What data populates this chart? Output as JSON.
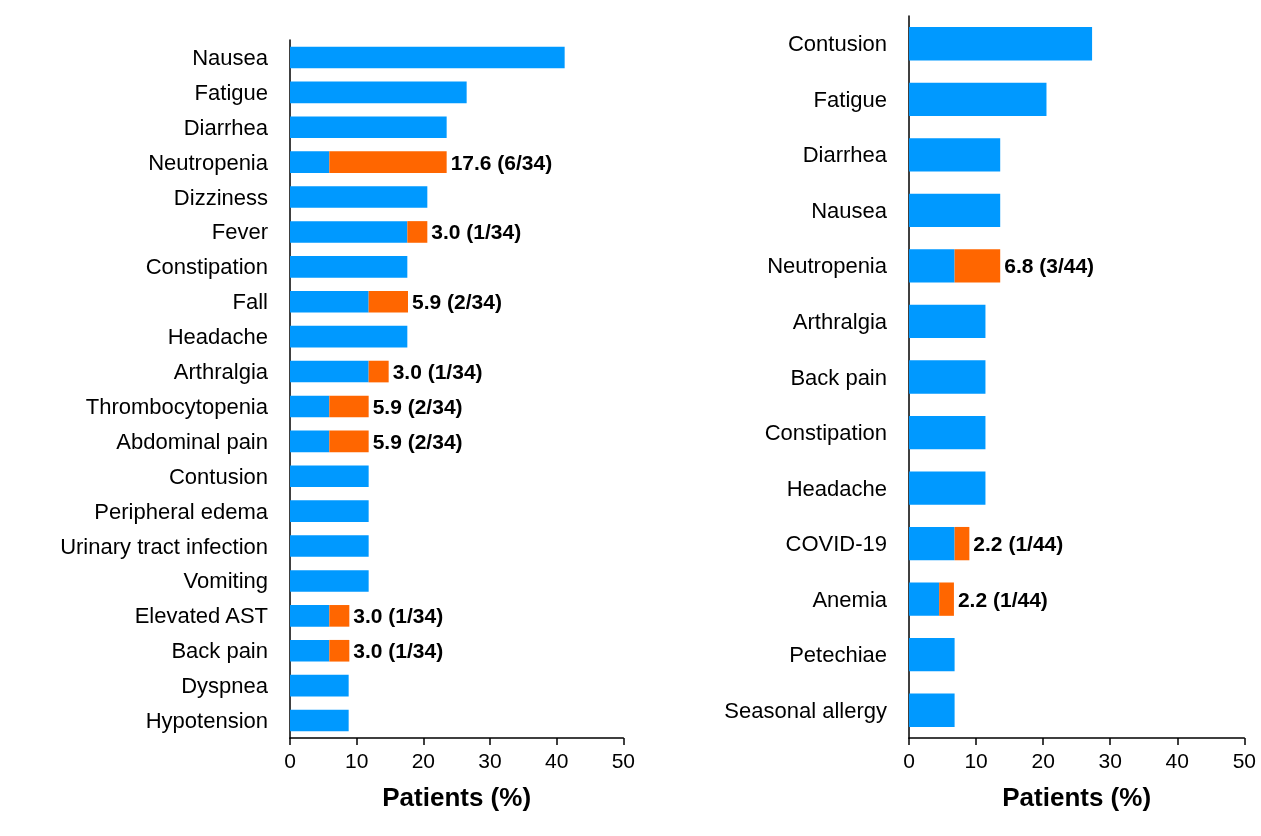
{
  "chart_data": [
    {
      "type": "bar",
      "orientation": "horizontal",
      "stacked": true,
      "xlabel": "Patients (%)",
      "xlim": [
        0,
        50
      ],
      "xticks": [
        0,
        10,
        20,
        30,
        40,
        50
      ],
      "categories": [
        "Nausea",
        "Fatigue",
        "Diarrhea",
        "Neutropenia",
        "Dizziness",
        "Fever",
        "Constipation",
        "Fall",
        "Headache",
        "Arthralgia",
        "Thrombocytopenia",
        "Abdominal pain",
        "Contusion",
        "Peripheral edema",
        "Urinary tract infection",
        "Vomiting",
        "Elevated AST",
        "Back pain",
        "Dyspnea",
        "Hypotension"
      ],
      "series": [
        {
          "color": "#0099ff",
          "values": [
            41.2,
            26.5,
            23.5,
            5.9,
            20.6,
            17.6,
            17.6,
            11.8,
            17.6,
            11.8,
            5.9,
            5.9,
            11.8,
            11.8,
            11.8,
            11.8,
            5.9,
            5.9,
            8.8,
            8.8
          ]
        },
        {
          "color": "#ff6600",
          "values": [
            null,
            null,
            null,
            17.6,
            null,
            3.0,
            null,
            5.9,
            null,
            3.0,
            5.9,
            5.9,
            null,
            null,
            null,
            null,
            3.0,
            3.0,
            null,
            null
          ],
          "value_labels": [
            null,
            null,
            null,
            "17.6 (6/34)",
            null,
            "3.0 (1/34)",
            null,
            "5.9 (2/34)",
            null,
            "3.0 (1/34)",
            "5.9 (2/34)",
            "5.9 (2/34)",
            null,
            null,
            null,
            null,
            "3.0 (1/34)",
            "3.0 (1/34)",
            null,
            null
          ]
        }
      ]
    },
    {
      "type": "bar",
      "orientation": "horizontal",
      "stacked": true,
      "xlabel": "Patients (%)",
      "xlim": [
        0,
        50
      ],
      "xticks": [
        0,
        10,
        20,
        30,
        40,
        50
      ],
      "categories": [
        "Contusion",
        "Fatigue",
        "Diarrhea",
        "Nausea",
        "Neutropenia",
        "Arthralgia",
        "Back pain",
        "Constipation",
        "Headache",
        "COVID-19",
        "Anemia",
        "Petechiae",
        "Seasonal allergy"
      ],
      "series": [
        {
          "color": "#0099ff",
          "values": [
            27.3,
            20.5,
            13.6,
            13.6,
            6.8,
            11.4,
            11.4,
            11.4,
            11.4,
            6.8,
            4.5,
            6.8,
            6.8
          ]
        },
        {
          "color": "#ff6600",
          "values": [
            null,
            null,
            null,
            null,
            6.8,
            null,
            null,
            null,
            null,
            2.2,
            2.2,
            null,
            null
          ],
          "value_labels": [
            null,
            null,
            null,
            null,
            "6.8 (3/44)",
            null,
            null,
            null,
            null,
            "2.2 (1/44)",
            "2.2 (1/44)",
            null,
            null
          ]
        }
      ]
    }
  ]
}
